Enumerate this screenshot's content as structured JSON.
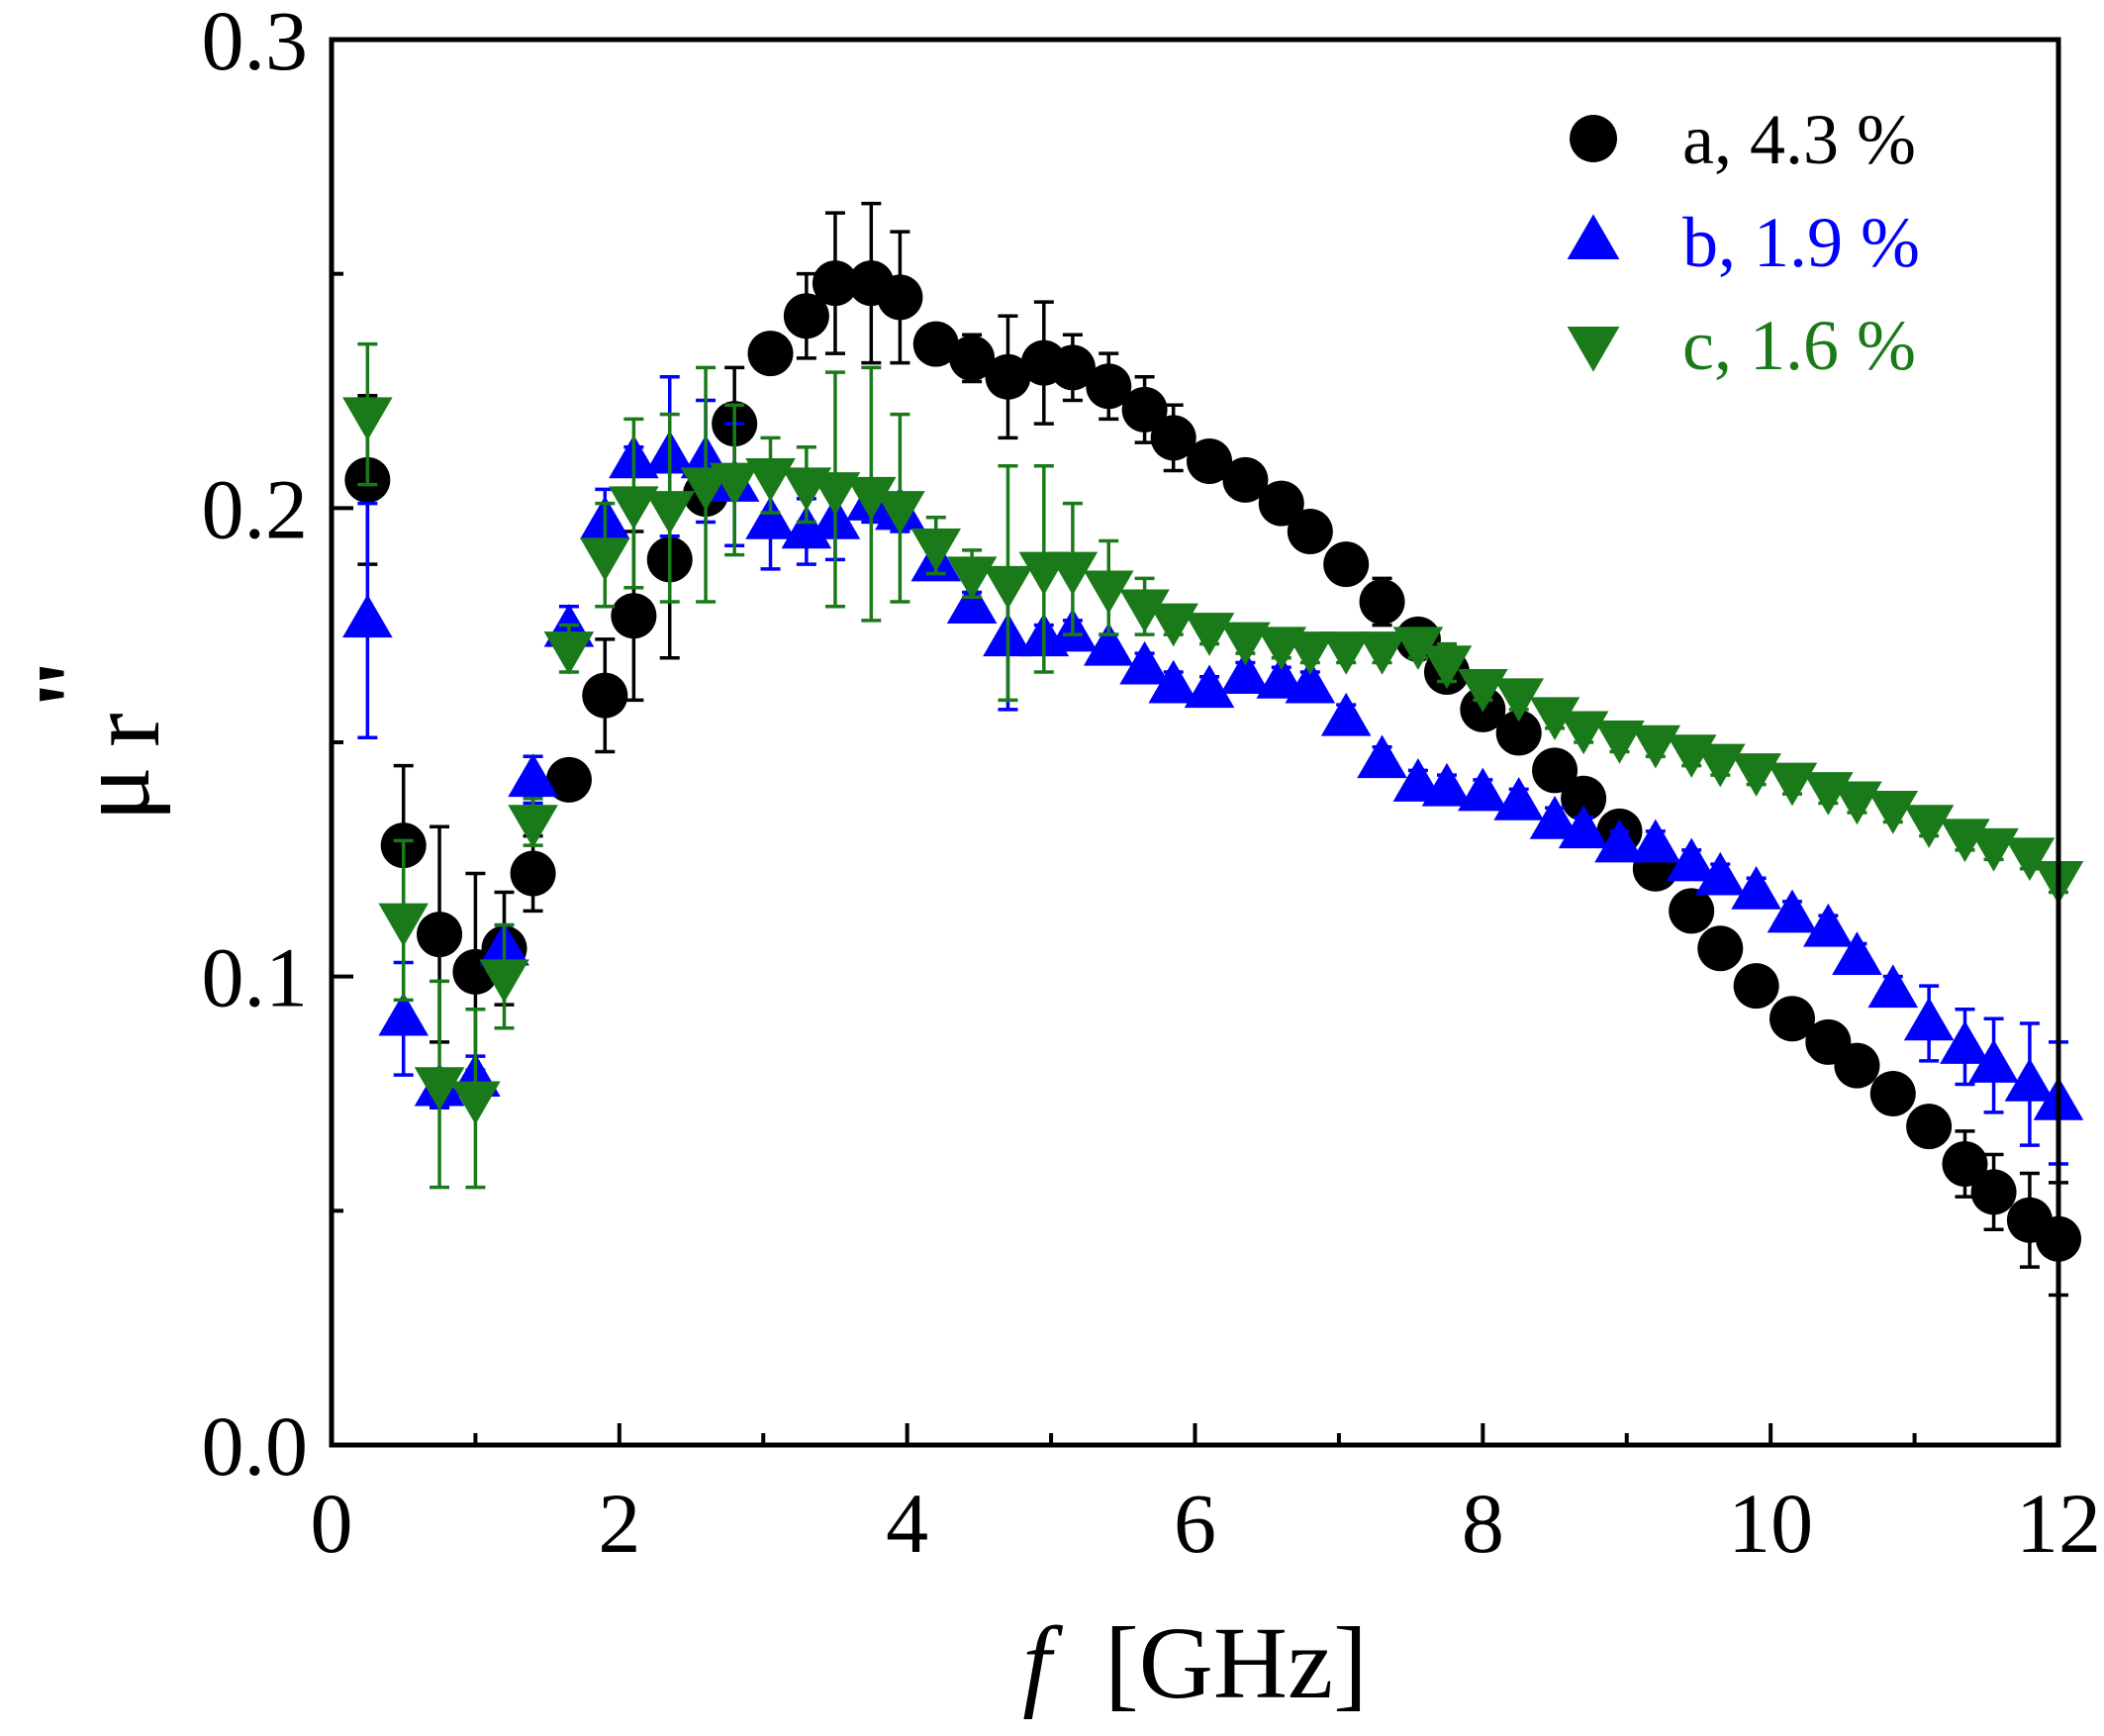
{
  "chart_data": {
    "type": "scatter",
    "title": "",
    "xlabel_italic": "f",
    "xlabel_unit": "[GHz]",
    "ylabel_symbol": "μ",
    "ylabel_subscript": "r",
    "ylabel_superscript": "\"",
    "xlim": [
      0,
      12
    ],
    "ylim": [
      0.0,
      0.3
    ],
    "xticks": [
      0,
      2,
      4,
      6,
      8,
      10,
      12
    ],
    "xtick_labels": [
      "0",
      "2",
      "4",
      "6",
      "8",
      "10",
      "12"
    ],
    "yticks": [
      0.0,
      0.1,
      0.2,
      0.3
    ],
    "ytick_labels": [
      "0.0",
      "0.1",
      "0.2",
      "0.3"
    ],
    "grid": false,
    "legend_position": "top-right",
    "error_bars": true,
    "x": [
      0.25,
      0.5,
      0.75,
      1.0,
      1.2,
      1.4,
      1.65,
      1.9,
      2.1,
      2.35,
      2.6,
      2.8,
      3.05,
      3.3,
      3.5,
      3.75,
      3.95,
      4.2,
      4.45,
      4.7,
      4.95,
      5.15,
      5.4,
      5.65,
      5.85,
      6.1,
      6.35,
      6.6,
      6.8,
      7.05,
      7.3,
      7.55,
      7.75,
      8.0,
      8.25,
      8.5,
      8.7,
      8.95,
      9.2,
      9.45,
      9.65,
      9.9,
      10.15,
      10.4,
      10.6,
      10.85,
      11.1,
      11.35,
      11.55,
      11.8,
      12.0
    ],
    "series": [
      {
        "name": "a, 4.3 %",
        "color": "#000000",
        "marker": "circle",
        "values": [
          0.206,
          0.128,
          0.109,
          0.101,
          0.106,
          0.122,
          0.142,
          0.16,
          0.177,
          0.189,
          0.203,
          0.218,
          0.233,
          0.241,
          0.248,
          0.248,
          0.245,
          0.235,
          0.232,
          0.228,
          0.231,
          0.23,
          0.226,
          0.221,
          0.215,
          0.21,
          0.206,
          0.201,
          0.195,
          0.188,
          0.18,
          0.172,
          0.165,
          0.157,
          0.152,
          0.144,
          0.138,
          0.131,
          0.123,
          0.114,
          0.106,
          0.098,
          0.091,
          0.086,
          0.081,
          0.075,
          0.068,
          0.06,
          0.054,
          0.048,
          0.044
        ],
        "errors": [
          0.018,
          0.017,
          0.023,
          0.021,
          0.012,
          0.008,
          0.003,
          0.012,
          0.018,
          0.021,
          0.003,
          0.012,
          0.004,
          0.009,
          0.015,
          0.017,
          0.014,
          0.004,
          0.005,
          0.013,
          0.013,
          0.007,
          0.007,
          0.007,
          0.007,
          0.003,
          0.003,
          0.003,
          0.003,
          0.003,
          0.005,
          0.003,
          0.003,
          0.003,
          0.003,
          0.003,
          0.004,
          0.003,
          0.003,
          0.003,
          0.003,
          0.003,
          0.003,
          0.003,
          0.003,
          0.003,
          0.003,
          0.007,
          0.008,
          0.01,
          0.012
        ]
      },
      {
        "name": "b, 1.9 %",
        "color": "#0000ff",
        "marker": "triangle-up",
        "values": [
          0.176,
          0.091,
          0.076,
          0.078,
          0.106,
          0.142,
          0.174,
          0.197,
          0.21,
          0.211,
          0.21,
          0.205,
          0.197,
          0.195,
          0.197,
          0.201,
          0.199,
          0.188,
          0.179,
          0.172,
          0.172,
          0.173,
          0.17,
          0.166,
          0.162,
          0.161,
          0.164,
          0.163,
          0.162,
          0.155,
          0.146,
          0.141,
          0.14,
          0.139,
          0.137,
          0.133,
          0.131,
          0.128,
          0.128,
          0.124,
          0.121,
          0.118,
          0.113,
          0.11,
          0.104,
          0.097,
          0.09,
          0.085,
          0.081,
          0.077,
          0.073
        ],
        "errors": [
          0.025,
          0.012,
          0.004,
          0.005,
          0.005,
          0.005,
          0.005,
          0.007,
          0.003,
          0.017,
          0.013,
          0.013,
          0.01,
          0.007,
          0.008,
          0.004,
          0.004,
          0.003,
          0.003,
          0.015,
          0.003,
          0.003,
          0.003,
          0.003,
          0.003,
          0.003,
          0.003,
          0.003,
          0.003,
          0.003,
          0.003,
          0.003,
          0.003,
          0.003,
          0.003,
          0.003,
          0.003,
          0.003,
          0.003,
          0.003,
          0.003,
          0.003,
          0.003,
          0.003,
          0.003,
          0.003,
          0.008,
          0.008,
          0.01,
          0.013,
          0.013
        ]
      },
      {
        "name": "c, 1.6 %",
        "color": "#1a7a1a",
        "marker": "triangle-down",
        "values": [
          0.22,
          0.112,
          0.077,
          0.074,
          0.1,
          0.133,
          0.17,
          0.19,
          0.201,
          0.2,
          0.205,
          0.206,
          0.207,
          0.205,
          0.204,
          0.203,
          0.2,
          0.192,
          0.186,
          0.184,
          0.187,
          0.187,
          0.183,
          0.179,
          0.176,
          0.174,
          0.172,
          0.171,
          0.17,
          0.17,
          0.17,
          0.171,
          0.167,
          0.162,
          0.16,
          0.156,
          0.153,
          0.151,
          0.15,
          0.148,
          0.146,
          0.144,
          0.142,
          0.14,
          0.138,
          0.136,
          0.133,
          0.13,
          0.128,
          0.126,
          0.121
        ],
        "errors": [
          0.015,
          0.017,
          0.022,
          0.019,
          0.011,
          0.005,
          0.005,
          0.011,
          0.018,
          0.02,
          0.025,
          0.016,
          0.008,
          0.008,
          0.025,
          0.027,
          0.02,
          0.006,
          0.005,
          0.025,
          0.022,
          0.014,
          0.01,
          0.006,
          0.003,
          0.003,
          0.003,
          0.003,
          0.003,
          0.003,
          0.003,
          0.003,
          0.004,
          0.003,
          0.003,
          0.003,
          0.003,
          0.003,
          0.003,
          0.003,
          0.003,
          0.003,
          0.003,
          0.003,
          0.003,
          0.003,
          0.003,
          0.003,
          0.003,
          0.003,
          0.003
        ]
      }
    ]
  }
}
